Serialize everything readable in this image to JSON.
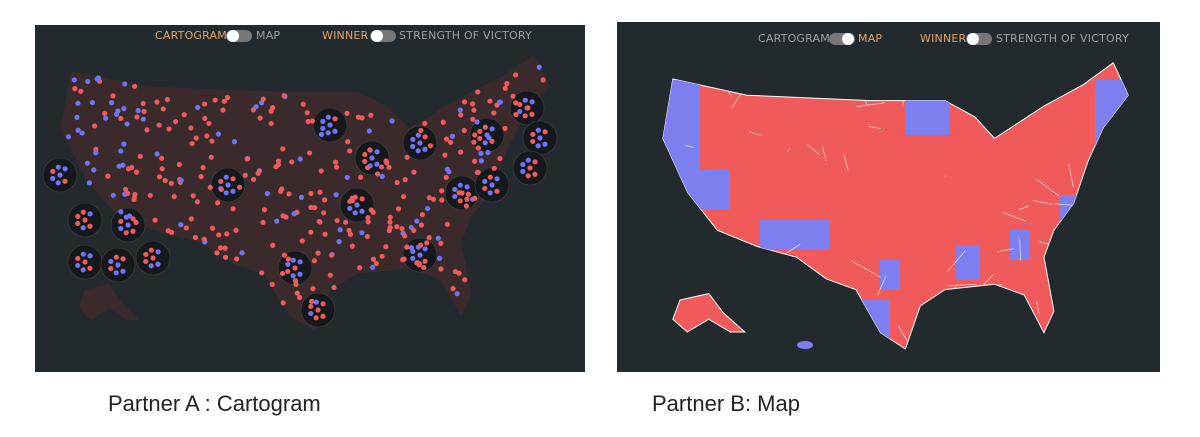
{
  "panels": [
    {
      "toggle1_left": "CARTOGRAM",
      "toggle1_right": "MAP",
      "toggle2_left": "WINNER",
      "toggle2_right": "STRENGTH OF VICTORY",
      "caption": "Partner A : Cartogram"
    },
    {
      "toggle1_left": "CARTOGRAM",
      "toggle1_right": "MAP",
      "toggle2_left": "WINNER",
      "toggle2_right": "STRENGTH OF VICTORY",
      "caption": "Partner B: Map"
    }
  ]
}
